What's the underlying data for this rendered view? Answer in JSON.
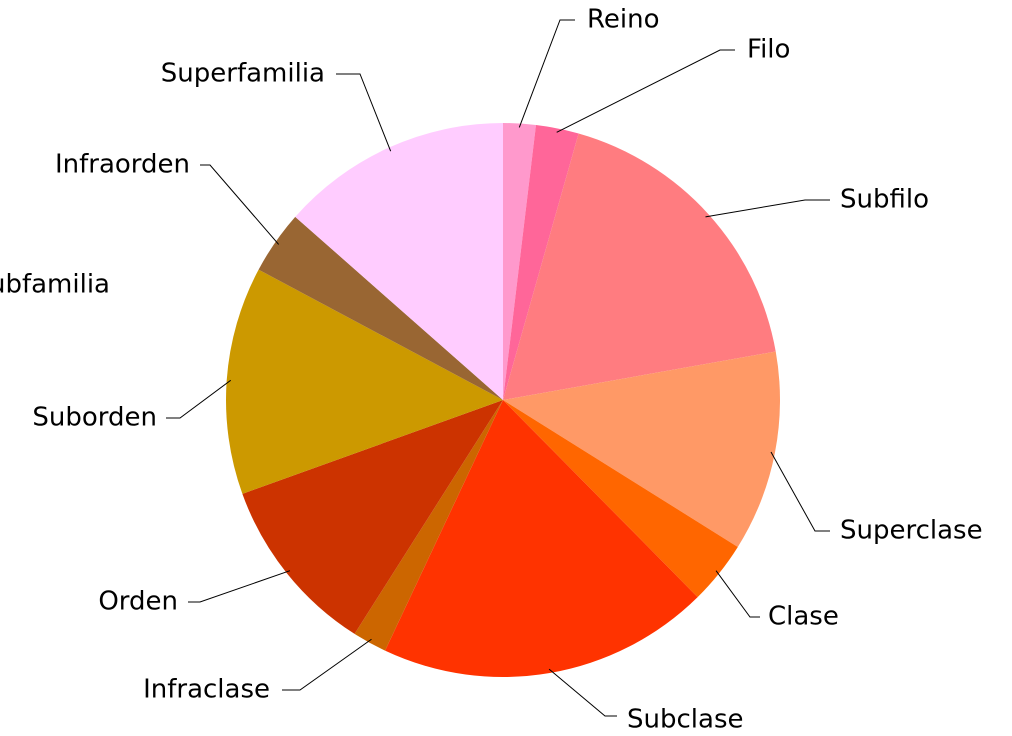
{
  "chart_data": {
    "type": "pie",
    "categories": [
      "Reino",
      "Filo",
      "Subfilo",
      "Superclase",
      "Clase",
      "Subclase",
      "Infraclase",
      "Orden",
      "Suborden",
      "Subfamilia",
      "Infraorden",
      "Superfamilia"
    ],
    "values": [
      1.9,
      2.5,
      17.8,
      11.7,
      3.7,
      19.4,
      2.0,
      10.5,
      13.3,
      0,
      3.7,
      13.5
    ],
    "colors": [
      "#ff99cc",
      "#ff6699",
      "#ff7c80",
      "#ff9966",
      "#ff6600",
      "#ff3300",
      "#cc6600",
      "#cc3300",
      "#cc9900",
      "#993300",
      "#996633",
      "#ffccff"
    ]
  }
}
